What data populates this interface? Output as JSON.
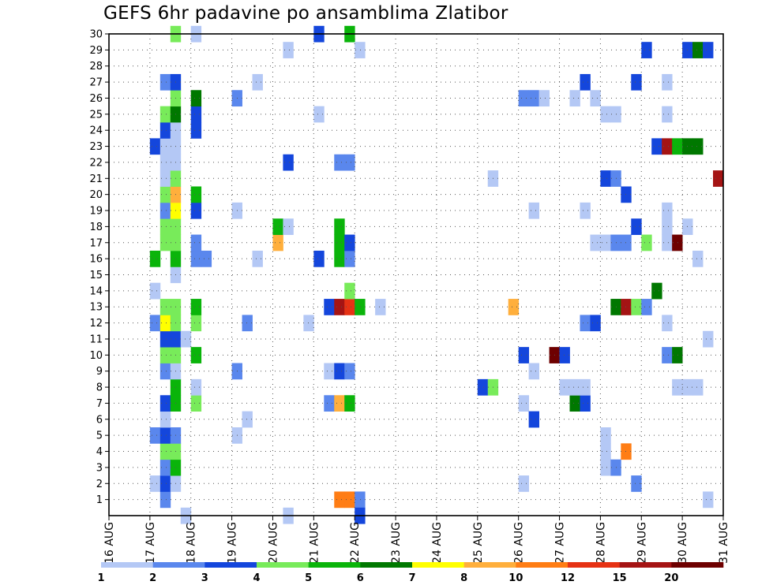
{
  "chart_data": {
    "type": "heatmap",
    "title": "GEFS 6hr padavine po ansamblima Zlatibor",
    "xlabel": "",
    "ylabel": "",
    "x_tick_labels": [
      "16 AUG",
      "17 AUG",
      "18 AUG",
      "19 AUG",
      "20 AUG",
      "21 AUG",
      "22 AUG",
      "23 AUG",
      "24 AUG",
      "25 AUG",
      "26 AUG",
      "27 AUG",
      "28 AUG",
      "29 AUG",
      "30 AUG",
      "31 AUG"
    ],
    "y_tick_labels": [
      "1",
      "2",
      "3",
      "4",
      "5",
      "6",
      "7",
      "8",
      "9",
      "10",
      "11",
      "12",
      "13",
      "14",
      "15",
      "16",
      "17",
      "18",
      "19",
      "20",
      "21",
      "22",
      "23",
      "24",
      "25",
      "26",
      "27",
      "28",
      "29",
      "30"
    ],
    "ylim": [
      0,
      30
    ],
    "grid": true,
    "time_step_hours": 6,
    "colorbar": {
      "labels": [
        "1",
        "2",
        "3",
        "4",
        "5",
        "6",
        "7",
        "8",
        "10",
        "12",
        "15",
        "20"
      ],
      "colors": [
        "#b4c8f5",
        "#5a87ed",
        "#1446dc",
        "#78eb5a",
        "#0ab40a",
        "#007800",
        "#ffff00",
        "#ffaf3c",
        "#ff7d14",
        "#e63214",
        "#a51414",
        "#6e0000"
      ]
    },
    "cells": [
      [
        1,
        0,
        2,
        1
      ],
      [
        1,
        0,
        5,
        2
      ],
      [
        1,
        0,
        12,
        2
      ],
      [
        1,
        0,
        14,
        1
      ],
      [
        1,
        0,
        16,
        5
      ],
      [
        1,
        0,
        23,
        3
      ],
      [
        1,
        1,
        1,
        2
      ],
      [
        1,
        1,
        2,
        3
      ],
      [
        1,
        1,
        3,
        2
      ],
      [
        1,
        1,
        4,
        4
      ],
      [
        1,
        1,
        5,
        3
      ],
      [
        1,
        1,
        6,
        1
      ],
      [
        1,
        1,
        7,
        3
      ],
      [
        1,
        1,
        9,
        2
      ],
      [
        1,
        1,
        10,
        4
      ],
      [
        1,
        1,
        11,
        3
      ],
      [
        1,
        1,
        12,
        7
      ],
      [
        1,
        1,
        13,
        4
      ],
      [
        1,
        1,
        17,
        4
      ],
      [
        1,
        1,
        18,
        4
      ],
      [
        1,
        1,
        19,
        2
      ],
      [
        1,
        1,
        20,
        4
      ],
      [
        1,
        1,
        21,
        1
      ],
      [
        1,
        1,
        22,
        1
      ],
      [
        1,
        1,
        23,
        1
      ],
      [
        1,
        1,
        24,
        3
      ],
      [
        1,
        1,
        25,
        4
      ],
      [
        1,
        1,
        27,
        2
      ],
      [
        1,
        2,
        2,
        1
      ],
      [
        1,
        2,
        3,
        5
      ],
      [
        1,
        2,
        4,
        4
      ],
      [
        1,
        2,
        5,
        2
      ],
      [
        1,
        2,
        7,
        5
      ],
      [
        1,
        2,
        8,
        5
      ],
      [
        1,
        2,
        9,
        1
      ],
      [
        1,
        2,
        10,
        4
      ],
      [
        1,
        2,
        11,
        3
      ],
      [
        1,
        2,
        12,
        4
      ],
      [
        1,
        2,
        13,
        4
      ],
      [
        1,
        2,
        15,
        1
      ],
      [
        1,
        2,
        16,
        5
      ],
      [
        1,
        2,
        17,
        4
      ],
      [
        1,
        2,
        18,
        4
      ],
      [
        1,
        2,
        19,
        7
      ],
      [
        1,
        2,
        20,
        8
      ],
      [
        1,
        2,
        21,
        4
      ],
      [
        1,
        2,
        22,
        1
      ],
      [
        1,
        2,
        23,
        1
      ],
      [
        1,
        2,
        24,
        1
      ],
      [
        1,
        2,
        25,
        6
      ],
      [
        1,
        2,
        26,
        4
      ],
      [
        1,
        2,
        27,
        3
      ],
      [
        1,
        2,
        30,
        4
      ],
      [
        1,
        3,
        0,
        1
      ],
      [
        1,
        3,
        11,
        1
      ],
      [
        2,
        0,
        7,
        4
      ],
      [
        2,
        0,
        8,
        1
      ],
      [
        2,
        0,
        10,
        5
      ],
      [
        2,
        0,
        12,
        4
      ],
      [
        2,
        0,
        13,
        5
      ],
      [
        2,
        0,
        16,
        2
      ],
      [
        2,
        0,
        17,
        2
      ],
      [
        2,
        0,
        19,
        3
      ],
      [
        2,
        0,
        20,
        5
      ],
      [
        2,
        0,
        24,
        3
      ],
      [
        2,
        0,
        25,
        3
      ],
      [
        2,
        0,
        26,
        6
      ],
      [
        2,
        0,
        30,
        1
      ],
      [
        2,
        1,
        16,
        2
      ],
      [
        3,
        0,
        5,
        1
      ],
      [
        3,
        0,
        9,
        2
      ],
      [
        3,
        0,
        19,
        1
      ],
      [
        3,
        0,
        26,
        2
      ],
      [
        3,
        1,
        6,
        1
      ],
      [
        3,
        1,
        12,
        2
      ],
      [
        3,
        2,
        16,
        1
      ],
      [
        3,
        2,
        27,
        1
      ],
      [
        4,
        0,
        17,
        8
      ],
      [
        4,
        0,
        18,
        5
      ],
      [
        4,
        1,
        0,
        1
      ],
      [
        4,
        1,
        18,
        1
      ],
      [
        4,
        1,
        22,
        3
      ],
      [
        4,
        1,
        29,
        1
      ],
      [
        4,
        3,
        12,
        1
      ],
      [
        5,
        0,
        16,
        3
      ],
      [
        5,
        0,
        25,
        1
      ],
      [
        5,
        0,
        30,
        3
      ],
      [
        5,
        1,
        7,
        2
      ],
      [
        5,
        1,
        9,
        1
      ],
      [
        5,
        1,
        13,
        3
      ],
      [
        5,
        2,
        1,
        9
      ],
      [
        5,
        2,
        7,
        8
      ],
      [
        5,
        2,
        9,
        3
      ],
      [
        5,
        2,
        13,
        11
      ],
      [
        5,
        2,
        16,
        5
      ],
      [
        5,
        2,
        17,
        5
      ],
      [
        5,
        2,
        18,
        5
      ],
      [
        5,
        2,
        22,
        2
      ],
      [
        5,
        3,
        1,
        9
      ],
      [
        5,
        3,
        7,
        5
      ],
      [
        5,
        3,
        9,
        2
      ],
      [
        5,
        3,
        13,
        10
      ],
      [
        5,
        3,
        14,
        4
      ],
      [
        5,
        3,
        16,
        2
      ],
      [
        5,
        3,
        17,
        3
      ],
      [
        5,
        3,
        22,
        2
      ],
      [
        5,
        3,
        30,
        5
      ],
      [
        5,
        4,
        1,
        2
      ],
      [
        5,
        4,
        13,
        5
      ],
      [
        6,
        0,
        0,
        3
      ],
      [
        6,
        0,
        29,
        1
      ],
      [
        6,
        2,
        13,
        1
      ],
      [
        9,
        0,
        8,
        3
      ],
      [
        9,
        1,
        8,
        4
      ],
      [
        9,
        1,
        21,
        1
      ],
      [
        9,
        3,
        13,
        8
      ],
      [
        10,
        0,
        2,
        1
      ],
      [
        10,
        0,
        7,
        1
      ],
      [
        10,
        0,
        10,
        3
      ],
      [
        10,
        0,
        26,
        2
      ],
      [
        10,
        1,
        6,
        3
      ],
      [
        10,
        1,
        9,
        1
      ],
      [
        10,
        1,
        19,
        1
      ],
      [
        10,
        1,
        26,
        2
      ],
      [
        10,
        2,
        26,
        1
      ],
      [
        10,
        3,
        10,
        12
      ],
      [
        11,
        0,
        8,
        1
      ],
      [
        11,
        0,
        10,
        3
      ],
      [
        11,
        1,
        7,
        6
      ],
      [
        11,
        1,
        8,
        1
      ],
      [
        11,
        1,
        26,
        1
      ],
      [
        11,
        2,
        7,
        3
      ],
      [
        11,
        2,
        8,
        1
      ],
      [
        11,
        2,
        12,
        2
      ],
      [
        11,
        2,
        19,
        1
      ],
      [
        11,
        2,
        27,
        3
      ],
      [
        11,
        3,
        12,
        3
      ],
      [
        11,
        3,
        17,
        1
      ],
      [
        11,
        3,
        26,
        1
      ],
      [
        12,
        0,
        3,
        1
      ],
      [
        12,
        0,
        4,
        1
      ],
      [
        12,
        0,
        5,
        1
      ],
      [
        12,
        0,
        17,
        1
      ],
      [
        12,
        0,
        21,
        3
      ],
      [
        12,
        0,
        25,
        1
      ],
      [
        12,
        1,
        3,
        2
      ],
      [
        12,
        1,
        13,
        6
      ],
      [
        12,
        1,
        17,
        2
      ],
      [
        12,
        1,
        21,
        2
      ],
      [
        12,
        1,
        25,
        1
      ],
      [
        12,
        2,
        4,
        9
      ],
      [
        12,
        2,
        13,
        11
      ],
      [
        12,
        2,
        17,
        2
      ],
      [
        12,
        2,
        20,
        3
      ],
      [
        12,
        3,
        2,
        2
      ],
      [
        12,
        3,
        13,
        4
      ],
      [
        12,
        3,
        18,
        3
      ],
      [
        12,
        3,
        27,
        3
      ],
      [
        13,
        0,
        13,
        2
      ],
      [
        13,
        0,
        17,
        4
      ],
      [
        13,
        0,
        29,
        3
      ],
      [
        13,
        1,
        14,
        6
      ],
      [
        13,
        1,
        23,
        3
      ],
      [
        13,
        2,
        10,
        2
      ],
      [
        13,
        2,
        12,
        1
      ],
      [
        13,
        2,
        17,
        1
      ],
      [
        13,
        2,
        18,
        1
      ],
      [
        13,
        2,
        19,
        1
      ],
      [
        13,
        2,
        23,
        11
      ],
      [
        13,
        2,
        25,
        1
      ],
      [
        13,
        2,
        27,
        1
      ],
      [
        13,
        3,
        8,
        1
      ],
      [
        13,
        3,
        10,
        6
      ],
      [
        13,
        3,
        17,
        12
      ],
      [
        13,
        3,
        23,
        5
      ],
      [
        14,
        0,
        8,
        1
      ],
      [
        14,
        0,
        18,
        1
      ],
      [
        14,
        0,
        23,
        6
      ],
      [
        14,
        0,
        29,
        3
      ],
      [
        14,
        1,
        8,
        1
      ],
      [
        14,
        1,
        16,
        1
      ],
      [
        14,
        1,
        23,
        6
      ],
      [
        14,
        1,
        29,
        6
      ],
      [
        14,
        2,
        1,
        1
      ],
      [
        14,
        2,
        11,
        1
      ],
      [
        14,
        2,
        29,
        3
      ],
      [
        14,
        3,
        21,
        11
      ]
    ]
  }
}
